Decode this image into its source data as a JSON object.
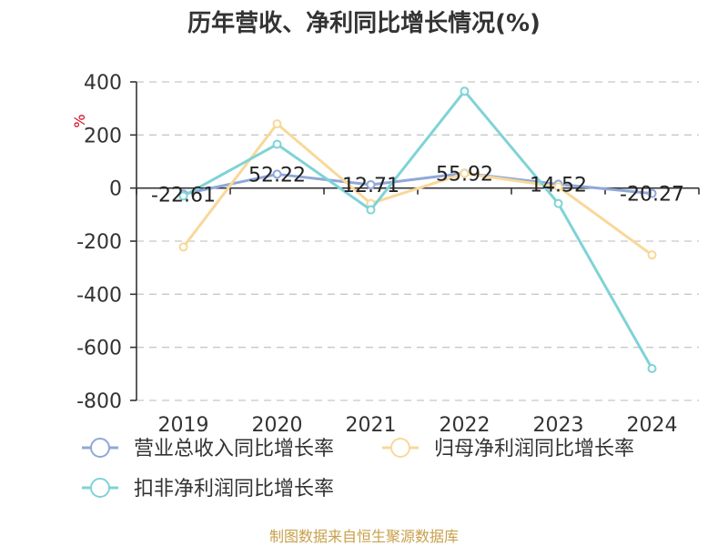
{
  "chart_data": {
    "type": "line",
    "title": "历年营收、净利同比增长情况(%)",
    "unit_label": "%",
    "categories": [
      "2019",
      "2020",
      "2021",
      "2022",
      "2023",
      "2024"
    ],
    "ylim": [
      -800,
      400
    ],
    "yticks": [
      400,
      200,
      0,
      -200,
      -400,
      -600,
      -800
    ],
    "grid": true,
    "legend_position": "bottom",
    "series": [
      {
        "name": "营业总收入同比增长率",
        "color": "#8fa8d8",
        "values": [
          -22.61,
          52.22,
          12.71,
          55.92,
          14.52,
          -20.27
        ],
        "labels": [
          "-22.61",
          "52.22",
          "12.71",
          "55.92",
          "14.52",
          "-20.27"
        ]
      },
      {
        "name": "归母净利润同比增长率",
        "color": "#f8d89a",
        "values": [
          -222,
          242,
          -58,
          55,
          5,
          -252
        ]
      },
      {
        "name": "扣非净利润同比增长率",
        "color": "#7fd3d6",
        "values": [
          -30,
          165,
          -82,
          365,
          -58,
          -680
        ]
      }
    ],
    "source": "制图数据来自恒生聚源数据库"
  }
}
